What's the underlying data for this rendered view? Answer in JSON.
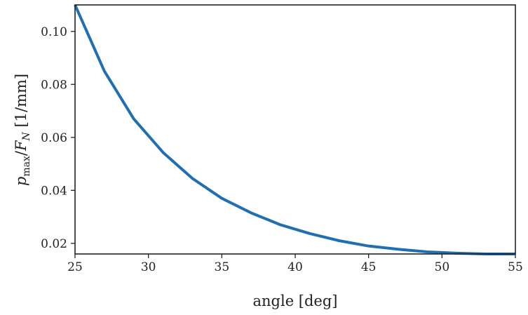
{
  "chart_data": {
    "type": "line",
    "title": "",
    "xlabel": "angle [deg]",
    "ylabel": {
      "p": "p",
      "sub_max": "max",
      "slash": "/",
      "F": "F",
      "sub_N": "N",
      "unit": " [1/mm]"
    },
    "xlim": [
      25,
      55
    ],
    "ylim": [
      0.016,
      0.11
    ],
    "xticks": [
      25,
      30,
      35,
      40,
      45,
      50,
      55
    ],
    "xtick_labels": [
      "25",
      "30",
      "35",
      "40",
      "45",
      "50",
      "55"
    ],
    "yticks": [
      0.02,
      0.04,
      0.06,
      0.08,
      0.1
    ],
    "ytick_labels": [
      "0.02",
      "0.04",
      "0.06",
      "0.08",
      "0.10"
    ],
    "grid": false,
    "series": [
      {
        "color": "#1f6fb2",
        "x": [
          25,
          27,
          29,
          31,
          33,
          35,
          37,
          39,
          41,
          43,
          45,
          47,
          49,
          51,
          53,
          55
        ],
        "y": [
          0.11,
          0.085,
          0.067,
          0.0543,
          0.0445,
          0.037,
          0.0315,
          0.027,
          0.0237,
          0.021,
          0.019,
          0.0178,
          0.0168,
          0.0163,
          0.016,
          0.016
        ]
      }
    ]
  }
}
